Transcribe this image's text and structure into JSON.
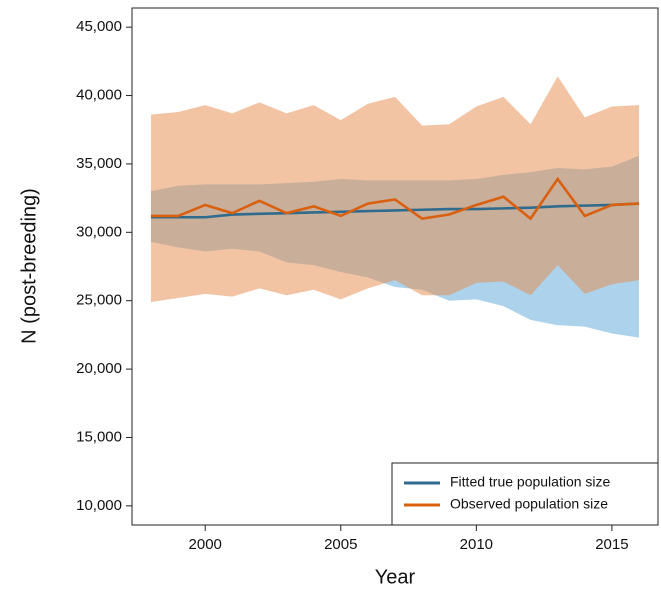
{
  "chart_data": {
    "type": "line",
    "xlabel": "Year",
    "ylabel": "N (post-breeding)",
    "x": [
      1998,
      1999,
      2000,
      2001,
      2002,
      2003,
      2004,
      2005,
      2006,
      2007,
      2008,
      2009,
      2010,
      2011,
      2012,
      2013,
      2014,
      2015,
      2016
    ],
    "series": [
      {
        "name": "Fitted true population size",
        "color": "#2f6b8c",
        "band_color": "#5aa8d8",
        "values": [
          31100,
          31100,
          31100,
          31300,
          31350,
          31400,
          31450,
          31500,
          31550,
          31600,
          31650,
          31700,
          31700,
          31750,
          31800,
          31900,
          31950,
          32000,
          32100
        ],
        "lower": [
          29300,
          28900,
          28600,
          28800,
          28600,
          27800,
          27600,
          27100,
          26700,
          26000,
          25800,
          25000,
          25100,
          24600,
          23600,
          23200,
          23100,
          22600,
          22300
        ],
        "upper": [
          33000,
          33400,
          33500,
          33500,
          33500,
          33600,
          33700,
          33900,
          33800,
          33800,
          33800,
          33800,
          33900,
          34200,
          34400,
          34700,
          34600,
          34800,
          35600
        ]
      },
      {
        "name": "Observed population size",
        "color": "#d9600f",
        "band_color": "#e58a4a",
        "values": [
          31200,
          31200,
          32000,
          31400,
          32300,
          31400,
          31900,
          31200,
          32100,
          32400,
          31000,
          31300,
          32000,
          32600,
          31000,
          33900,
          31200,
          32000,
          32100
        ],
        "lower": [
          24900,
          25200,
          25500,
          25300,
          25900,
          25400,
          25800,
          25100,
          25900,
          26500,
          25400,
          25400,
          26300,
          26400,
          25400,
          27600,
          25500,
          26200,
          26500
        ],
        "upper": [
          38600,
          38800,
          39300,
          38700,
          39500,
          38700,
          39300,
          38200,
          39400,
          39900,
          37800,
          37900,
          39200,
          39900,
          37900,
          41400,
          38400,
          39200,
          39300
        ]
      }
    ],
    "xlim": [
      1997.3,
      2016.7
    ],
    "xticks": [
      2000,
      2005,
      2010,
      2015
    ],
    "ylim": [
      8600,
      46400
    ],
    "yticks": [
      {
        "value": 10000,
        "label": "10,000"
      },
      {
        "value": 15000,
        "label": "15,000"
      },
      {
        "value": 20000,
        "label": "20,000"
      },
      {
        "value": 25000,
        "label": "25,000"
      },
      {
        "value": 30000,
        "label": "30,000"
      },
      {
        "value": 35000,
        "label": "35,000"
      },
      {
        "value": 40000,
        "label": "40,000"
      },
      {
        "value": 45000,
        "label": "45,000"
      }
    ],
    "legend": "lower right"
  }
}
